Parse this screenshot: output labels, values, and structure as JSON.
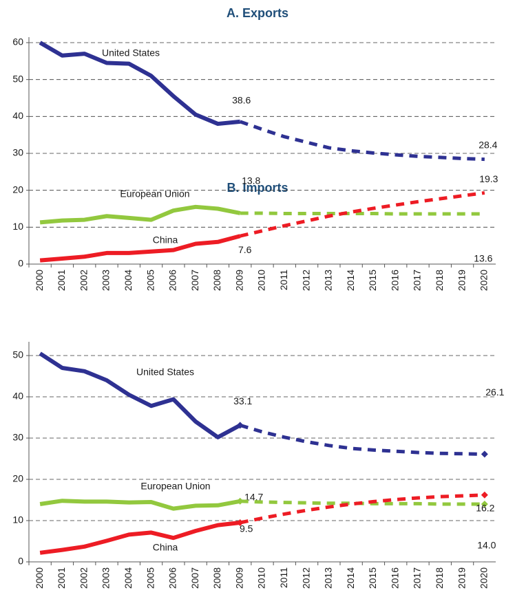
{
  "chart_data": [
    {
      "type": "line",
      "title": "A. Exports",
      "categories": [
        "2000",
        "2001",
        "2002",
        "2003",
        "2004",
        "2005",
        "2006",
        "2007",
        "2008",
        "2009",
        "2010",
        "2011",
        "2012",
        "2013",
        "2014",
        "2015",
        "2016",
        "2017",
        "2018",
        "2019",
        "2020"
      ],
      "ylim": [
        0,
        60
      ],
      "yticks": [
        0,
        10,
        20,
        30,
        40,
        50,
        60
      ],
      "grid": true,
      "series": [
        {
          "name": "United States",
          "color": "#2e3192",
          "values": [
            60,
            56.5,
            57,
            54.5,
            54.3,
            51,
            45.5,
            40.5,
            38,
            38.6,
            null,
            null,
            null,
            null,
            null,
            null,
            null,
            null,
            null,
            null,
            null
          ],
          "value_labels": [
            null,
            null,
            null,
            null,
            null,
            null,
            null,
            null,
            null,
            "38.6",
            null,
            null,
            null,
            null,
            null,
            null,
            null,
            null,
            null,
            null,
            null
          ]
        },
        {
          "color": "#2e3192",
          "style": "dashed",
          "values": [
            null,
            null,
            null,
            null,
            null,
            null,
            null,
            null,
            null,
            38.6,
            36.5,
            34.5,
            33,
            31.5,
            30.7,
            30.1,
            29.6,
            29.2,
            28.9,
            28.6,
            28.4
          ],
          "value_labels": [
            null,
            null,
            null,
            null,
            null,
            null,
            null,
            null,
            null,
            null,
            null,
            null,
            null,
            null,
            null,
            null,
            null,
            null,
            null,
            null,
            "28.4"
          ]
        },
        {
          "name": "European Union",
          "color": "#92c83e",
          "values": [
            11.3,
            11.8,
            12,
            13,
            12.5,
            12,
            14.5,
            15.5,
            15,
            13.8,
            null,
            null,
            null,
            null,
            null,
            null,
            null,
            null,
            null,
            null,
            null
          ],
          "value_labels": [
            null,
            null,
            null,
            null,
            null,
            null,
            null,
            null,
            null,
            "13.8",
            null,
            null,
            null,
            null,
            null,
            null,
            null,
            null,
            null,
            null,
            null
          ]
        },
        {
          "color": "#92c83e",
          "style": "dashed",
          "values": [
            null,
            null,
            null,
            null,
            null,
            null,
            null,
            null,
            null,
            13.8,
            13.8,
            13.7,
            13.7,
            13.7,
            13.7,
            13.7,
            13.6,
            13.6,
            13.6,
            13.6,
            13.6
          ],
          "value_labels": [
            null,
            null,
            null,
            null,
            null,
            null,
            null,
            null,
            null,
            null,
            null,
            null,
            null,
            null,
            null,
            null,
            null,
            null,
            null,
            null,
            "13.6"
          ]
        },
        {
          "name": "China",
          "color": "#ed1c24",
          "values": [
            1,
            1.5,
            2,
            3,
            3,
            3.4,
            3.8,
            5.5,
            6,
            7.6,
            null,
            null,
            null,
            null,
            null,
            null,
            null,
            null,
            null,
            null,
            null
          ],
          "value_labels": [
            null,
            null,
            null,
            null,
            null,
            null,
            null,
            null,
            null,
            "7.6",
            null,
            null,
            null,
            null,
            null,
            null,
            null,
            null,
            null,
            null,
            null
          ]
        },
        {
          "color": "#ed1c24",
          "style": "dashed",
          "values": [
            null,
            null,
            null,
            null,
            null,
            null,
            null,
            null,
            null,
            7.6,
            9,
            10.4,
            11.7,
            13,
            14.1,
            15.1,
            16,
            16.9,
            17.7,
            18.5,
            19.3
          ],
          "value_labels": [
            null,
            null,
            null,
            null,
            null,
            null,
            null,
            null,
            null,
            null,
            null,
            null,
            null,
            null,
            null,
            null,
            null,
            null,
            null,
            null,
            "19.3"
          ]
        }
      ]
    },
    {
      "type": "line",
      "title": "B. Imports",
      "annotation_color": "#1a1a1a",
      "categories": [
        "2000",
        "2001",
        "2002",
        "2003",
        "2004",
        "2005",
        "2006",
        "2007",
        "2008",
        "2009",
        "2010",
        "2011",
        "2012",
        "2013",
        "2014",
        "2015",
        "2016",
        "2017",
        "2018",
        "2019",
        "2020"
      ],
      "ylim": [
        0,
        52
      ],
      "yticks": [
        0,
        10,
        20,
        30,
        40,
        50
      ],
      "grid": true,
      "series": [
        {
          "name": "United States",
          "color": "#2e3192",
          "values": [
            50.5,
            47,
            46.2,
            44,
            40.5,
            37.8,
            39.4,
            34,
            30.2,
            33.1,
            null,
            null,
            null,
            null,
            null,
            null,
            null,
            null,
            null,
            null,
            null
          ],
          "value_labels": [
            null,
            null,
            null,
            null,
            null,
            null,
            null,
            null,
            null,
            "33.1",
            null,
            null,
            null,
            null,
            null,
            null,
            null,
            null,
            null,
            null,
            null
          ]
        },
        {
          "color": "#2e3192",
          "style": "dashed",
          "marker": "diamond",
          "values": [
            null,
            null,
            null,
            null,
            null,
            null,
            null,
            null,
            null,
            33.1,
            31.5,
            30.2,
            29.1,
            28.2,
            27.5,
            27.1,
            26.8,
            26.5,
            26.3,
            26.2,
            26.1
          ],
          "value_labels": [
            null,
            null,
            null,
            null,
            null,
            null,
            null,
            null,
            null,
            null,
            null,
            null,
            null,
            null,
            null,
            null,
            null,
            null,
            null,
            null,
            "26.1"
          ]
        },
        {
          "name": "European Union",
          "color": "#92c83e",
          "values": [
            14,
            14.8,
            14.6,
            14.6,
            14.4,
            14.5,
            12.9,
            13.6,
            13.7,
            14.7,
            null,
            null,
            null,
            null,
            null,
            null,
            null,
            null,
            null,
            null,
            null
          ],
          "value_labels": [
            null,
            null,
            null,
            null,
            null,
            null,
            null,
            null,
            null,
            "14.7",
            null,
            null,
            null,
            null,
            null,
            null,
            null,
            null,
            null,
            null,
            null
          ]
        },
        {
          "color": "#92c83e",
          "style": "dashed",
          "marker": "diamond",
          "values": [
            null,
            null,
            null,
            null,
            null,
            null,
            null,
            null,
            null,
            14.7,
            14.5,
            14.4,
            14.3,
            14.2,
            14.2,
            14.1,
            14.1,
            14.1,
            14.0,
            14.0,
            14.0
          ],
          "value_labels": [
            null,
            null,
            null,
            null,
            null,
            null,
            null,
            null,
            null,
            null,
            null,
            null,
            null,
            null,
            null,
            null,
            null,
            null,
            null,
            null,
            "14.0"
          ]
        },
        {
          "name": "China",
          "color": "#ed1c24",
          "values": [
            2.2,
            2.9,
            3.7,
            5.1,
            6.6,
            7.1,
            5.8,
            7.5,
            8.9,
            9.5,
            null,
            null,
            null,
            null,
            null,
            null,
            null,
            null,
            null,
            null,
            null
          ],
          "value_labels": [
            null,
            null,
            null,
            null,
            null,
            null,
            null,
            null,
            null,
            "9.5",
            null,
            null,
            null,
            null,
            null,
            null,
            null,
            null,
            null,
            null,
            null
          ]
        },
        {
          "color": "#ed1c24",
          "style": "dashed",
          "marker": "diamond",
          "values": [
            null,
            null,
            null,
            null,
            null,
            null,
            null,
            null,
            null,
            9.5,
            10.6,
            11.6,
            12.5,
            13.3,
            14,
            14.6,
            15.1,
            15.5,
            15.8,
            16.0,
            16.2
          ],
          "value_labels": [
            null,
            null,
            null,
            null,
            null,
            null,
            null,
            null,
            null,
            null,
            null,
            null,
            null,
            null,
            null,
            null,
            null,
            null,
            null,
            null,
            "16.2"
          ]
        }
      ]
    }
  ]
}
